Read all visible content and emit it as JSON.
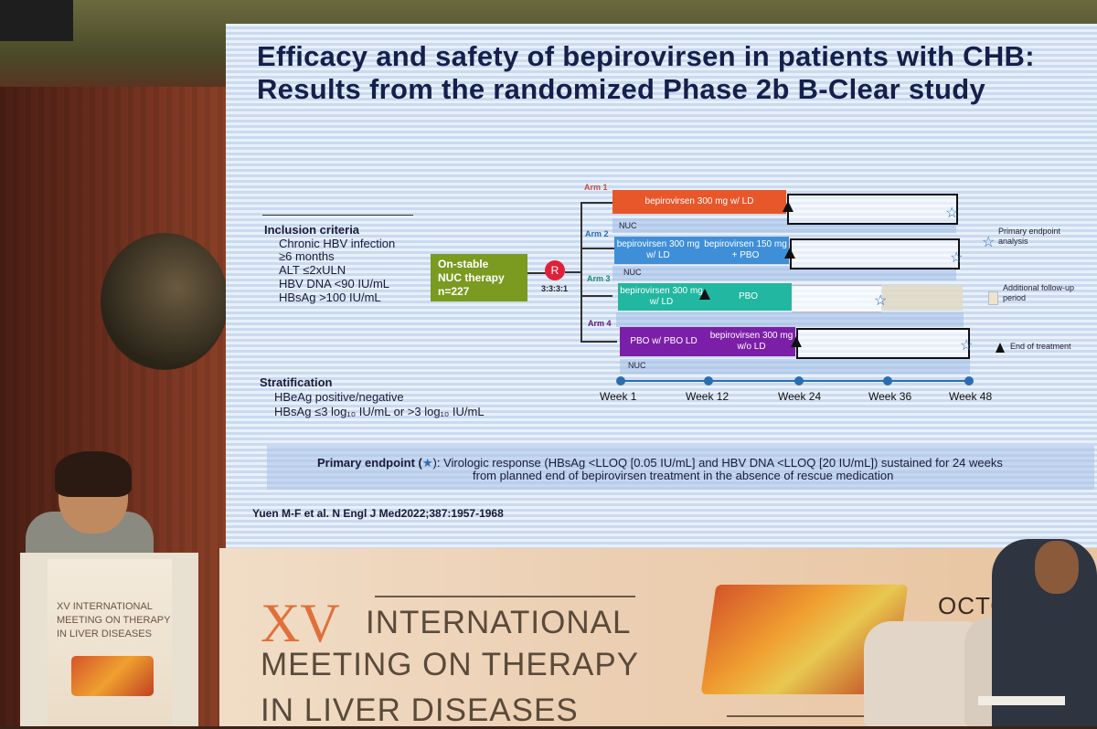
{
  "slide": {
    "title_line1": "Efficacy and safety of bepirovirsen in patients with CHB:",
    "title_line2": "Results from the randomized Phase 2b B-Clear study",
    "inclusion_heading": "Inclusion criteria",
    "inclusion_items": [
      "Chronic HBV infection",
      "≥6 months",
      "ALT ≤2xULN",
      "HBV DNA <90 IU/mL",
      "HBsAg >100 IU/mL"
    ],
    "stratification_heading": "Stratification",
    "stratification_items": [
      "HBeAg positive/negative",
      "HBsAg ≤3 log₁₀ IU/mL or >3 log₁₀ IU/mL"
    ],
    "nuc_box": [
      "On-stable",
      "NUC therapy",
      "n=227"
    ],
    "randomization": "R",
    "ratio": "3:3:3:1",
    "arms": [
      {
        "label": "Arm 1",
        "color": "#e8572a",
        "bars": [
          "bepirovirsen 300 mg w/ LD"
        ]
      },
      {
        "label": "Arm 2",
        "color": "#3f8fd8",
        "bars": [
          "bepirovirsen 300 mg w/ LD",
          "bepirovirsen 150 mg + PBO"
        ]
      },
      {
        "label": "Arm 3",
        "color": "#21b7a0",
        "bars": [
          "bepirovirsen 300 mg w/ LD",
          "PBO"
        ]
      },
      {
        "label": "Arm 4",
        "color": "#7b1fa8",
        "bars": [
          "PBO w/ PBO LD",
          "bepirovirsen 300 mg w/o LD"
        ]
      }
    ],
    "nuc_label": "NUC",
    "weeks": [
      "Week 1",
      "Week 12",
      "Week 24",
      "Week 36",
      "Week 48"
    ],
    "legend": [
      "Primary endpoint analysis",
      "Additional follow-up period",
      "End of treatment"
    ],
    "primary_endpoint_label": "Primary endpoint (",
    "primary_endpoint_star": "★",
    "primary_endpoint_line1": "): Virologic response (HBsAg <LLOQ [0.05 IU/mL] and HBV DNA <LLOQ [20 IU/mL]) sustained for 24 weeks",
    "primary_endpoint_line2": "from planned end of bepirovirsen treatment in the absence of rescue medication",
    "citation": "Yuen M-F et al. N Engl J Med2022;387:1957-1968"
  },
  "banner": {
    "numeral": "XV",
    "line1": "INTERNATIONAL",
    "line2": "MEETING ON THERAPY",
    "line3": "IN LIVER DISEASES",
    "date_fragment": "OCTO"
  },
  "podium": {
    "line1": "XV INTERNATIONAL",
    "line2": "MEETING ON THERAPY",
    "line3": "IN LIVER DISEASES"
  }
}
